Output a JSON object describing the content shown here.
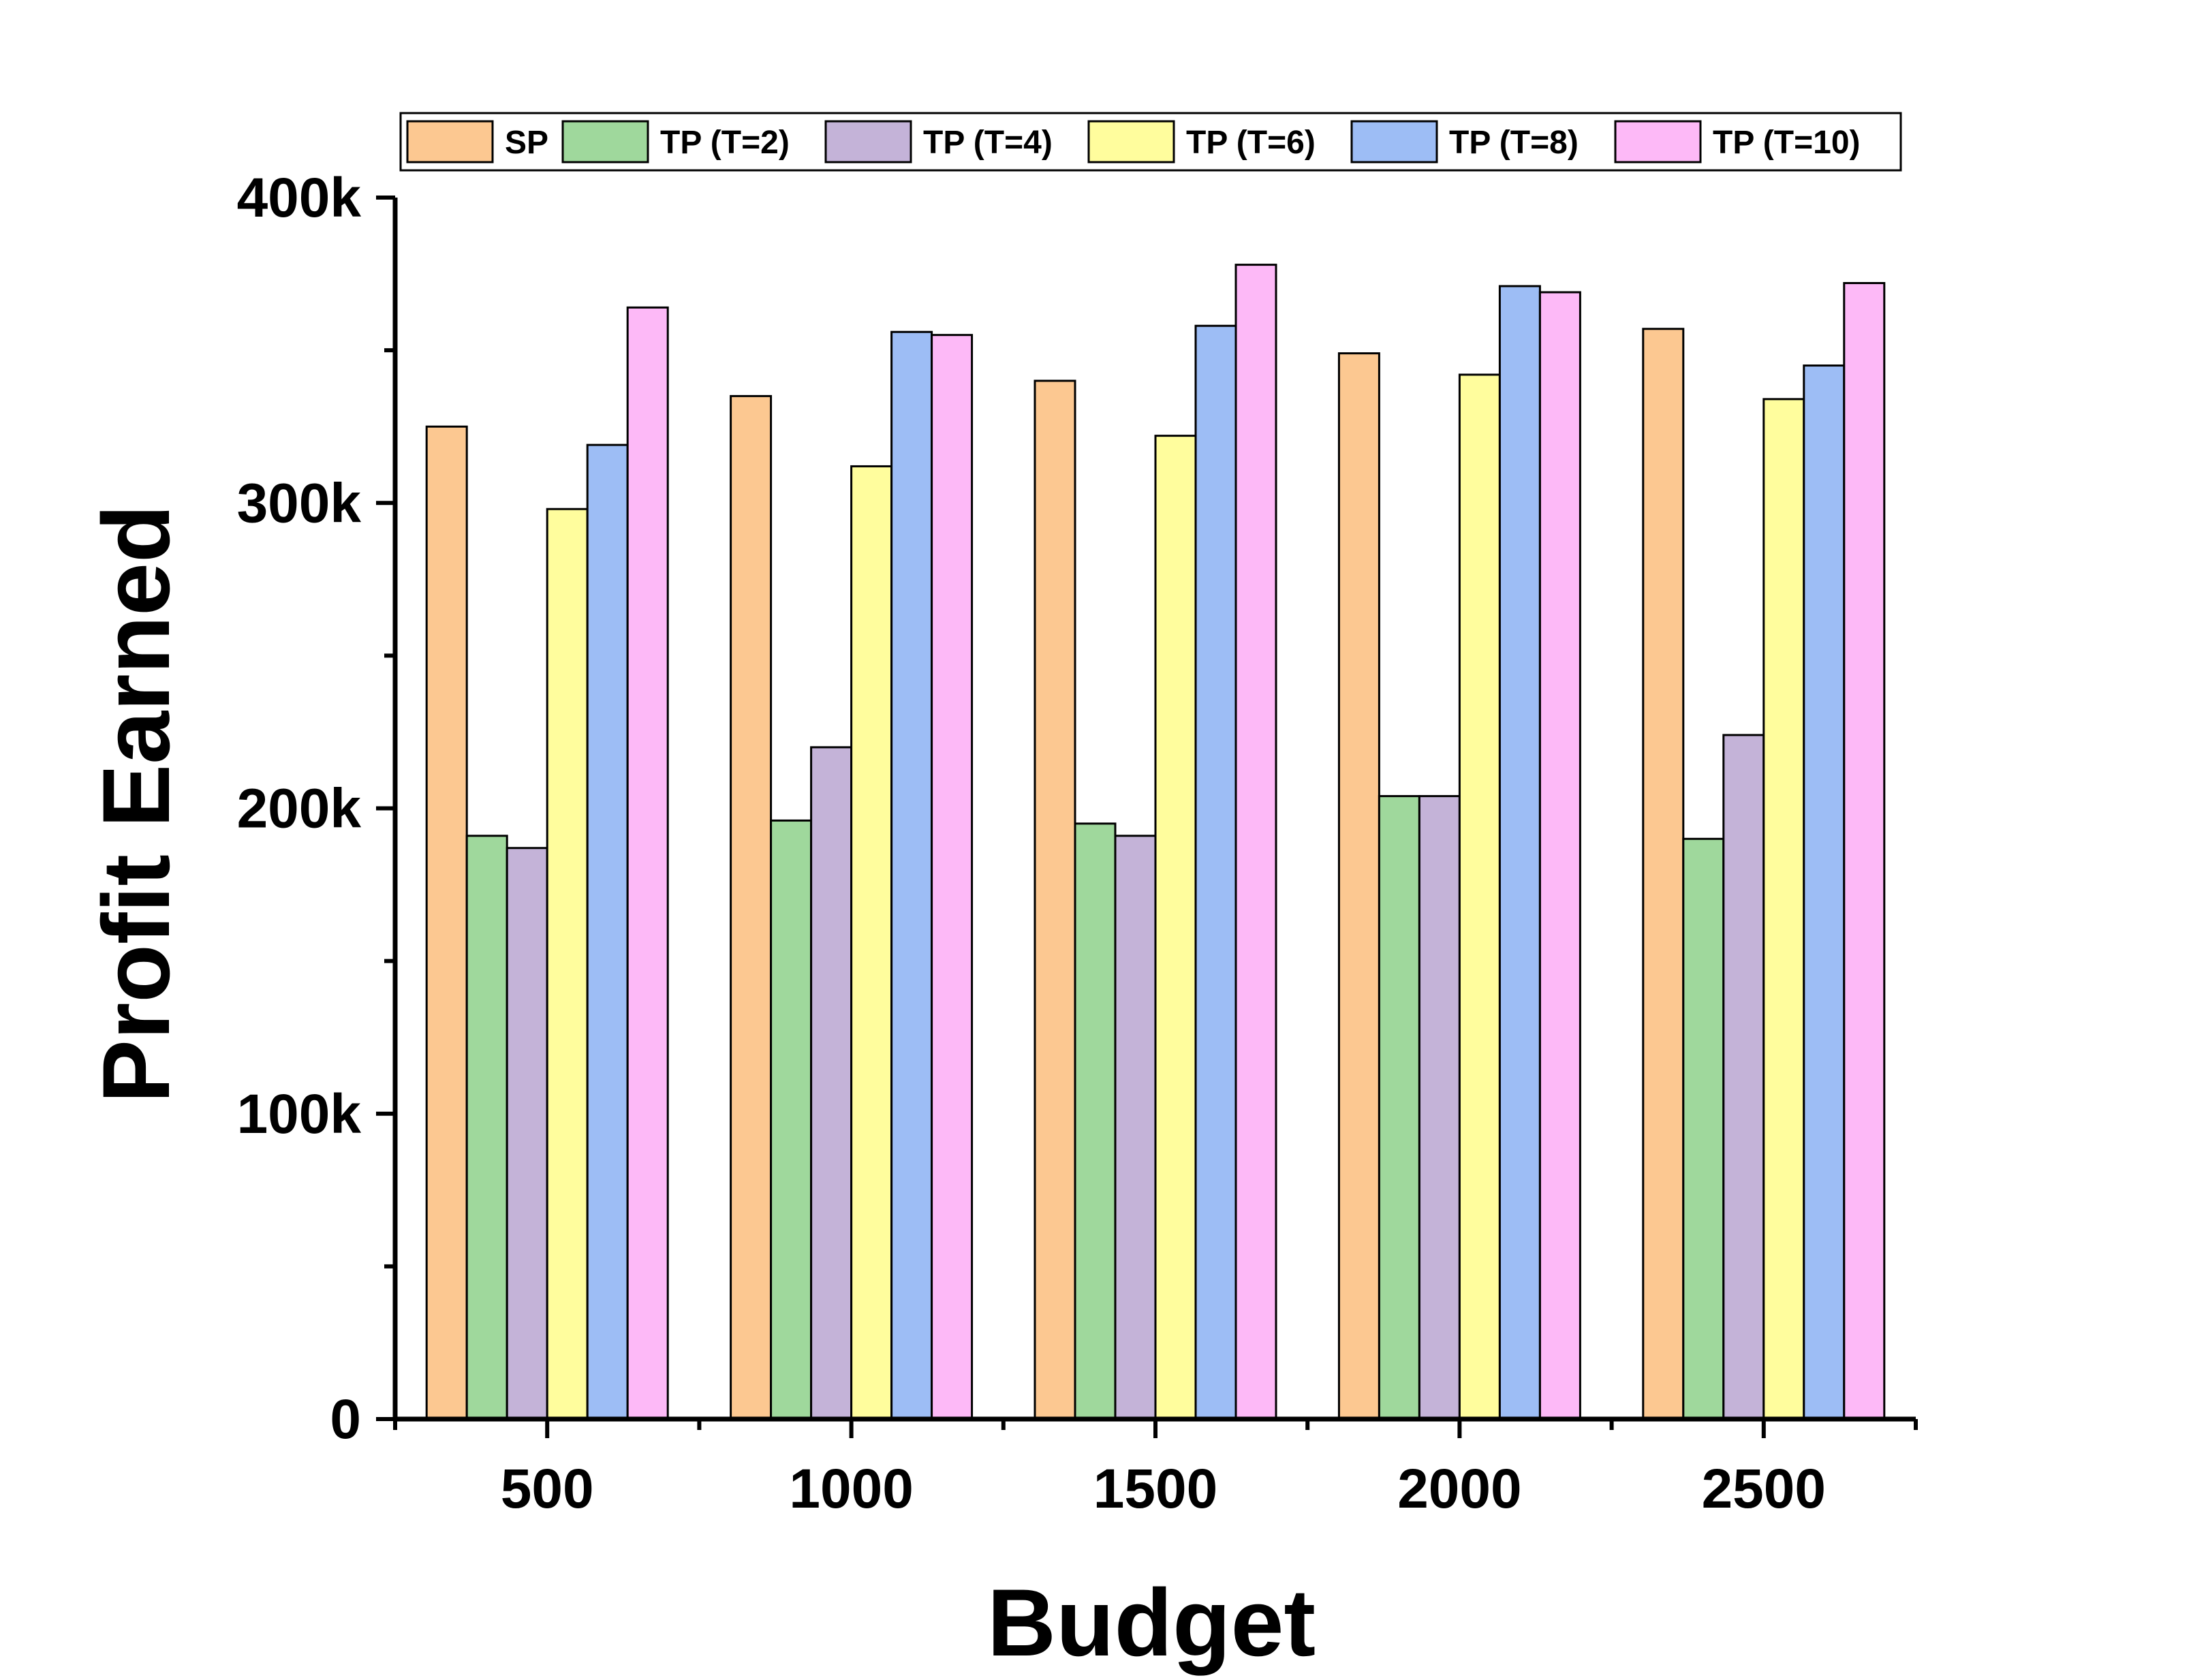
{
  "chart_data": {
    "type": "bar",
    "title": "",
    "xlabel": "Budget",
    "ylabel": "Profit Earned",
    "categories": [
      "500",
      "1000",
      "1500",
      "2000",
      "2500"
    ],
    "ylim": [
      0,
      400000
    ],
    "yticks": [
      {
        "value": 0,
        "label": "0"
      },
      {
        "value": 100000,
        "label": "100k"
      },
      {
        "value": 200000,
        "label": "200k"
      },
      {
        "value": 300000,
        "label": "300k"
      },
      {
        "value": 400000,
        "label": "400k"
      }
    ],
    "legend_position": "top",
    "grid": false,
    "series": [
      {
        "name": "SP",
        "color": "#fcc891",
        "values": [
          325000,
          335000,
          340000,
          349000,
          357000
        ]
      },
      {
        "name": "TP (T=2)",
        "color": "#9fd89c",
        "values": [
          191000,
          196000,
          195000,
          204000,
          190000
        ]
      },
      {
        "name": "TP (T=4)",
        "color": "#c4b3d8",
        "values": [
          187000,
          220000,
          191000,
          204000,
          224000
        ]
      },
      {
        "name": "TP (T=6)",
        "color": "#fffd9d",
        "values": [
          298000,
          312000,
          322000,
          342000,
          334000
        ]
      },
      {
        "name": "TP (T=8)",
        "color": "#9dbdf5",
        "values": [
          319000,
          356000,
          358000,
          371000,
          345000
        ]
      },
      {
        "name": "TP (T=10)",
        "color": "#fdb9f7",
        "values": [
          364000,
          355000,
          378000,
          369000,
          372000
        ]
      }
    ]
  }
}
